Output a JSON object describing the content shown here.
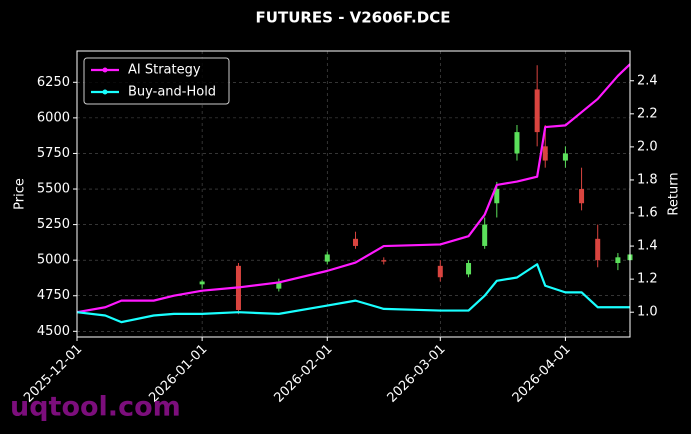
{
  "chart_data": {
    "type": "candlestick",
    "title": "FUTURES - V2606F.DCE",
    "ylabel": "Price",
    "y2label": "Return",
    "watermark": "uqtool.com",
    "x": [
      "2025-12-01",
      "2025-12-08",
      "2025-12-12",
      "2025-12-20",
      "2025-12-25",
      "2026-01-01",
      "2026-01-10",
      "2026-01-20",
      "2026-02-01",
      "2026-02-08",
      "2026-02-15",
      "2026-03-01",
      "2026-03-08",
      "2026-03-12",
      "2026-03-15",
      "2026-03-20",
      "2026-03-25",
      "2026-03-27",
      "2026-04-01",
      "2026-04-05",
      "2026-04-09",
      "2026-04-14",
      "2026-04-17"
    ],
    "open": [
      null,
      null,
      null,
      null,
      null,
      4830,
      4960,
      4800,
      4990,
      5150,
      5000,
      4960,
      4900,
      5100,
      5400,
      5750,
      6200,
      5800,
      5700,
      5500,
      5150,
      4980,
      5000
    ],
    "high": [
      null,
      null,
      null,
      null,
      null,
      4860,
      4980,
      4870,
      5060,
      5200,
      5020,
      5000,
      5000,
      5300,
      5550,
      5950,
      6370,
      5950,
      5800,
      5650,
      5250,
      5050,
      5060
    ],
    "low": [
      null,
      null,
      null,
      null,
      null,
      4800,
      4620,
      4780,
      4970,
      5080,
      4970,
      4850,
      4880,
      5080,
      5300,
      5700,
      5800,
      5650,
      5650,
      5350,
      4950,
      4930,
      4970
    ],
    "close": [
      null,
      null,
      null,
      null,
      null,
      4850,
      4650,
      4850,
      5040,
      5100,
      4990,
      4880,
      4980,
      5250,
      5500,
      5900,
      5900,
      5700,
      5750,
      5400,
      5000,
      5020,
      5040
    ],
    "up_color": "#5be05b",
    "down_color": "#d9443f",
    "series": [
      {
        "name": "AI Strategy",
        "color": "#ff19ff",
        "axis": "y2",
        "values": [
          1.0,
          1.03,
          1.07,
          1.07,
          1.1,
          1.13,
          1.15,
          1.18,
          1.25,
          1.3,
          1.4,
          1.41,
          1.46,
          1.59,
          1.77,
          1.79,
          1.82,
          2.12,
          2.13,
          2.21,
          2.29,
          2.43,
          2.5
        ]
      },
      {
        "name": "Buy-and-Hold",
        "color": "#19ffff",
        "axis": "y2",
        "values": [
          1.0,
          0.98,
          0.94,
          0.98,
          0.99,
          0.99,
          1.0,
          0.99,
          1.04,
          1.07,
          1.02,
          1.01,
          1.01,
          1.1,
          1.19,
          1.21,
          1.29,
          1.16,
          1.12,
          1.12,
          1.03,
          1.03,
          1.03
        ]
      }
    ],
    "xlim": [
      "2025-12-01",
      "2026-04-17"
    ],
    "xticks": [
      "2025-12-01",
      "2026-01-01",
      "2026-02-01",
      "2026-03-01",
      "2026-04-01"
    ],
    "ylim": [
      4460,
      6470
    ],
    "yticks": [
      4500,
      4750,
      5000,
      5250,
      5500,
      5750,
      6000,
      6250
    ],
    "y2lim": [
      0.85,
      2.58
    ],
    "y2ticks": [
      {
        "value": 1,
        "label": "1.0"
      },
      1.2,
      1.4,
      1.6,
      1.8,
      {
        "value": 2,
        "label": "2.0"
      },
      2.2,
      2.4
    ],
    "grid": true,
    "legend": "upper-left"
  }
}
